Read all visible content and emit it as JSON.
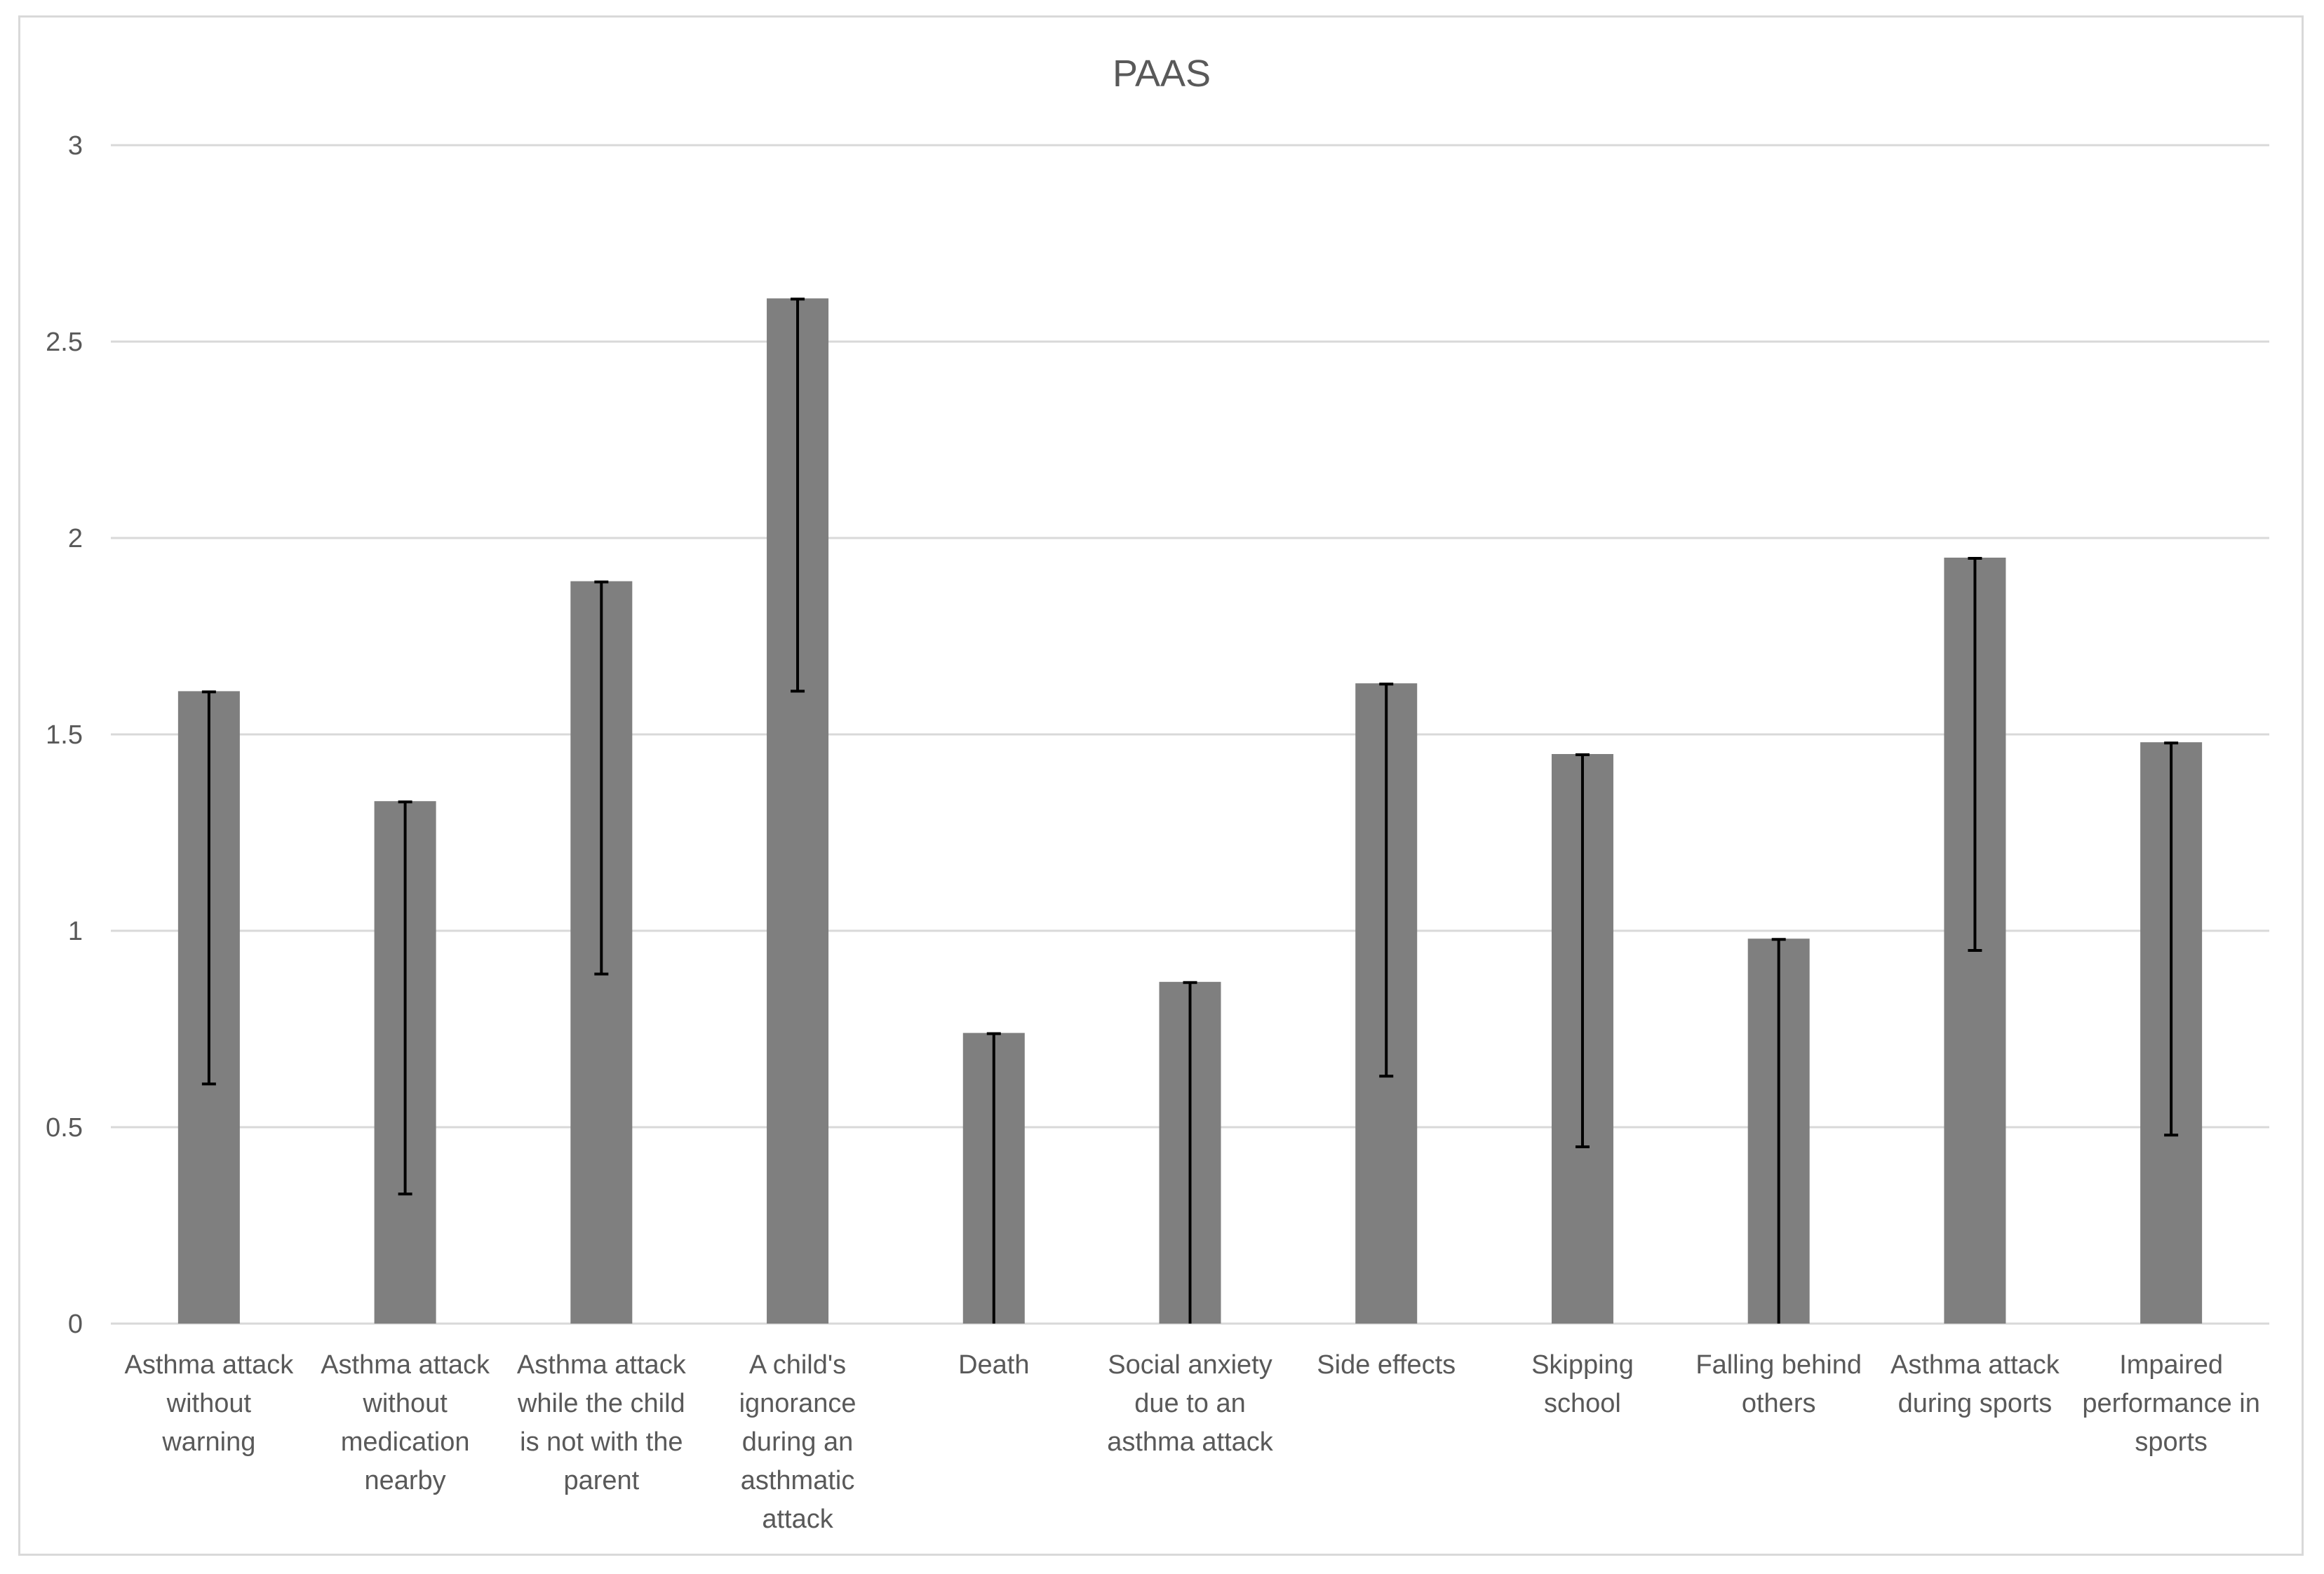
{
  "chart_data": {
    "type": "bar",
    "title": "PAAS",
    "xlabel": "",
    "ylabel": "",
    "ylim": [
      0,
      3
    ],
    "yticks": [
      "0",
      "0.5",
      "1",
      "1.5",
      "2",
      "2.5",
      "3"
    ],
    "grid": true,
    "legend": "none",
    "bar_color": "#7f7f7f",
    "error_bar_color": "#000000",
    "categories": [
      [
        "Asthma attack",
        "without",
        "warning"
      ],
      [
        "Asthma attack",
        "without",
        "medication",
        "nearby"
      ],
      [
        "Asthma attack",
        "while the child",
        "is not with the",
        "parent"
      ],
      [
        "A child's",
        "ignorance",
        "during an",
        "asthmatic",
        "attack"
      ],
      [
        "Death"
      ],
      [
        "Social anxiety",
        "due to an",
        "asthma attack"
      ],
      [
        "Side effects"
      ],
      [
        "Skipping",
        "school"
      ],
      [
        "Falling behind",
        "others"
      ],
      [
        "Asthma attack",
        "during sports"
      ],
      [
        "Impaired",
        "performance in",
        "sports"
      ]
    ],
    "values": [
      1.61,
      1.33,
      1.89,
      2.61,
      0.74,
      0.87,
      1.63,
      1.45,
      0.98,
      1.95,
      1.48
    ],
    "error_low": [
      0.61,
      0.33,
      0.89,
      1.61,
      0.0,
      0.0,
      0.63,
      0.45,
      0.0,
      0.95,
      0.48
    ]
  }
}
